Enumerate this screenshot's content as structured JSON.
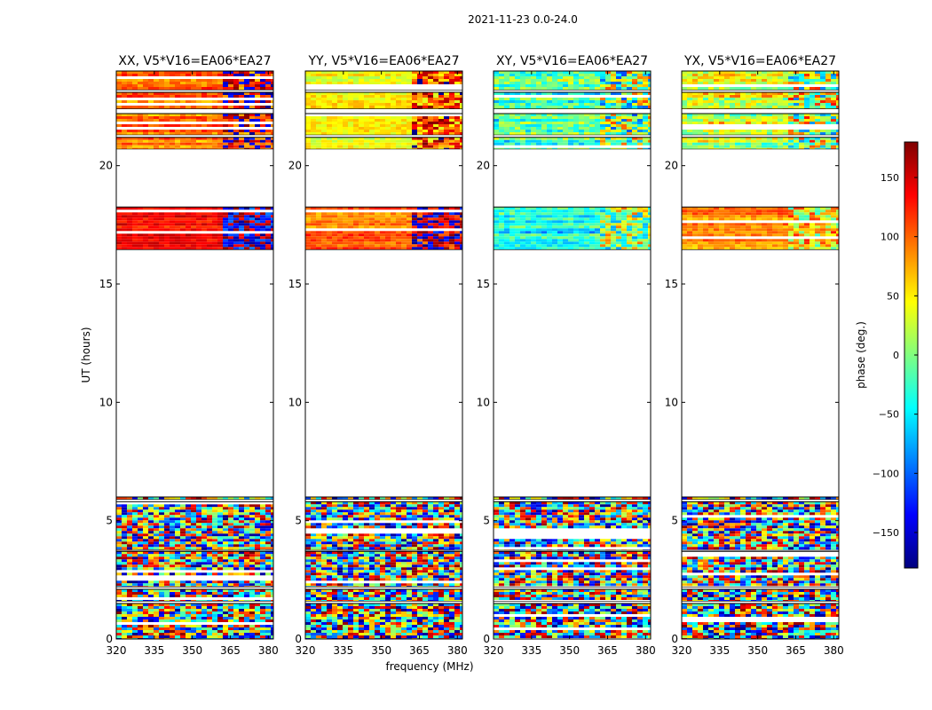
{
  "suptitle": "2021-11-23 0.0-24.0",
  "colormap": {
    "name": "jet",
    "stops": [
      "#00007f",
      "#0000ff",
      "#0080ff",
      "#00ffff",
      "#80ff80",
      "#ffff00",
      "#ff8000",
      "#ff0000",
      "#7f0000"
    ],
    "background": "#ffffff",
    "frame": "#000000"
  },
  "chart_data": {
    "type": "heatmap",
    "xlabel": "frequency (MHz)",
    "ylabel": "UT (hours)",
    "xlim": [
      320,
      382
    ],
    "ylim": [
      0,
      24
    ],
    "xticks": [
      320,
      335,
      350,
      365,
      380
    ],
    "yticks": [
      0,
      5,
      10,
      15,
      20
    ],
    "colorbar": {
      "label": "phase (deg.)",
      "range": [
        -180,
        180
      ],
      "ticks": [
        150,
        100,
        50,
        0,
        -50,
        -100,
        -150
      ],
      "tick_labels": [
        "150",
        "100",
        "50",
        "0",
        "−50",
        "−100",
        "−150"
      ]
    },
    "data_segments_ut_hours": [
      [
        0.0,
        1.5
      ],
      [
        1.6,
        2.1
      ],
      [
        2.2,
        3.7
      ],
      [
        3.75,
        5.8
      ],
      [
        5.9,
        6.0
      ],
      [
        16.45,
        18.25
      ],
      [
        20.7,
        21.2
      ],
      [
        21.3,
        22.2
      ],
      [
        22.4,
        23.1
      ],
      [
        23.2,
        24.0
      ]
    ],
    "panels": [
      {
        "title": "XX, V5*V16=EA06*EA27",
        "segment_phase_deg": [
          {
            "ut_range": [
              16.45,
              18.25
            ],
            "phase_deg": 140,
            "spread_deg": 35,
            "band_split_mhz": 362,
            "phase_above_split_deg": -160,
            "spread_above_split_deg": 70
          },
          {
            "ut_range": [
              20.7,
              24.0
            ],
            "phase_deg": 95,
            "spread_deg": 45,
            "band_split_mhz": 362,
            "phase_above_split_deg": 150,
            "spread_above_split_deg": 90
          }
        ]
      },
      {
        "title": "YY, V5*V16=EA06*EA27",
        "segment_phase_deg": [
          {
            "ut_range": [
              16.45,
              18.25
            ],
            "phase_deg": 100,
            "spread_deg": 40,
            "band_split_mhz": 362,
            "phase_above_split_deg": 170,
            "spread_above_split_deg": 80
          },
          {
            "ut_range": [
              20.7,
              24.0
            ],
            "phase_deg": 45,
            "spread_deg": 40,
            "band_split_mhz": 362,
            "phase_above_split_deg": 110,
            "spread_above_split_deg": 80
          }
        ]
      },
      {
        "title": "XY, V5*V16=EA06*EA27",
        "segment_phase_deg": [
          {
            "ut_range": [
              16.45,
              18.25
            ],
            "phase_deg": -40,
            "spread_deg": 60,
            "band_split_mhz": 362,
            "phase_above_split_deg": 10,
            "spread_above_split_deg": 90
          },
          {
            "ut_range": [
              20.7,
              24.0
            ],
            "phase_deg": -20,
            "spread_deg": 80,
            "band_split_mhz": 362,
            "phase_above_split_deg": 0,
            "spread_above_split_deg": 110
          }
        ]
      },
      {
        "title": "YX, V5*V16=EA06*EA27",
        "segment_phase_deg": [
          {
            "ut_range": [
              16.45,
              18.25
            ],
            "phase_deg": 90,
            "spread_deg": 40,
            "band_split_mhz": 362,
            "phase_above_split_deg": 50,
            "spread_above_split_deg": 80
          },
          {
            "ut_range": [
              20.7,
              24.0
            ],
            "phase_deg": 30,
            "spread_deg": 80,
            "band_split_mhz": 362,
            "phase_above_split_deg": 20,
            "spread_above_split_deg": 110
          }
        ]
      }
    ]
  }
}
